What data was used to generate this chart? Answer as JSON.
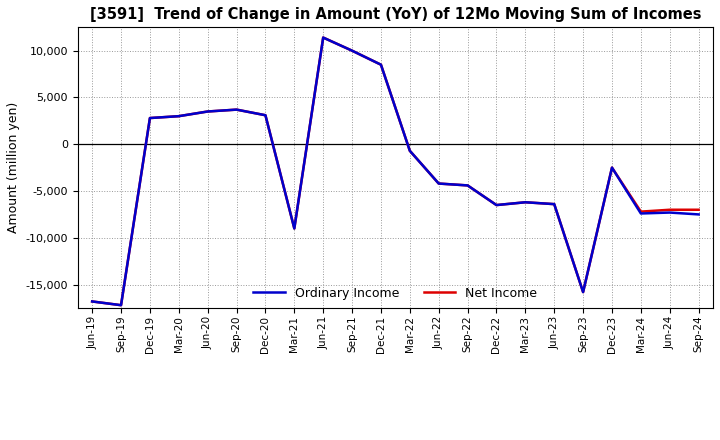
{
  "title": "[3591]  Trend of Change in Amount (YoY) of 12Mo Moving Sum of Incomes",
  "ylabel": "Amount (million yen)",
  "x_labels": [
    "Jun-19",
    "Sep-19",
    "Dec-19",
    "Mar-20",
    "Jun-20",
    "Sep-20",
    "Dec-20",
    "Mar-21",
    "Jun-21",
    "Sep-21",
    "Dec-21",
    "Mar-22",
    "Jun-22",
    "Sep-22",
    "Dec-22",
    "Mar-23",
    "Jun-23",
    "Sep-23",
    "Dec-23",
    "Mar-24",
    "Jun-24",
    "Sep-24"
  ],
  "net_income": [
    -16800,
    -17200,
    2800,
    3000,
    3500,
    3700,
    3100,
    -9000,
    11400,
    10000,
    8500,
    -700,
    -4200,
    -4400,
    -6500,
    -6200,
    -6400,
    -15800,
    -2500,
    -7200,
    -7000,
    -7000
  ],
  "ordinary_income": [
    -16800,
    -17200,
    2800,
    3000,
    3500,
    3700,
    3100,
    -9000,
    11400,
    10000,
    8500,
    -700,
    -4200,
    -4400,
    -6500,
    -6200,
    -6400,
    -15800,
    -2500,
    -7400,
    -7300,
    -7500
  ],
  "ordinary_income_color": "#0000cc",
  "net_income_color": "#dd0000",
  "background_color": "#ffffff",
  "grid_color": "#999999",
  "ylim": [
    -17500,
    12500
  ],
  "yticks": [
    -15000,
    -10000,
    -5000,
    0,
    5000,
    10000
  ],
  "legend_labels": [
    "Ordinary Income",
    "Net Income"
  ]
}
